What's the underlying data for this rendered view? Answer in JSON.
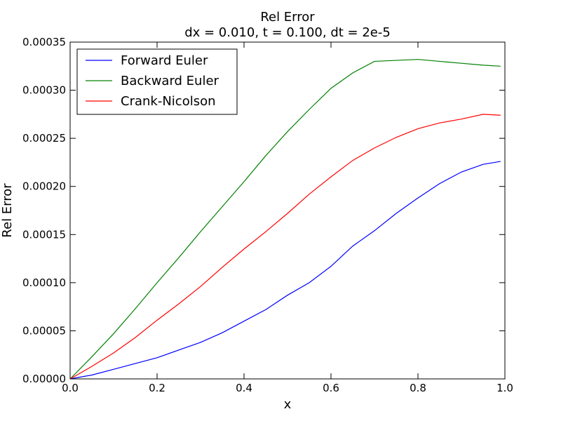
{
  "chart_data": {
    "type": "line",
    "title": "Rel Error",
    "subtitle": "dx = 0.010, t = 0.100, dt = 2e-5",
    "xlabel": "x",
    "ylabel": "Rel Error",
    "xlim": [
      0.0,
      1.0
    ],
    "ylim": [
      0.0,
      0.00035
    ],
    "grid": false,
    "legend_position": "top-left",
    "xticks": [
      0.0,
      0.2,
      0.4,
      0.6,
      0.8,
      1.0
    ],
    "xtick_labels": [
      "0.0",
      "0.2",
      "0.4",
      "0.6",
      "0.8",
      "1.0"
    ],
    "yticks": [
      0.0,
      5e-05,
      0.0001,
      0.00015,
      0.0002,
      0.00025,
      0.0003,
      0.00035
    ],
    "ytick_labels": [
      "0.00000",
      "0.00005",
      "0.00010",
      "0.00015",
      "0.00020",
      "0.00025",
      "0.00030",
      "0.00035"
    ],
    "series": [
      {
        "name": "Forward Euler",
        "color": "#0000ff",
        "x": [
          0.0,
          0.05,
          0.1,
          0.15,
          0.2,
          0.25,
          0.3,
          0.35,
          0.4,
          0.45,
          0.5,
          0.55,
          0.6,
          0.65,
          0.7,
          0.75,
          0.8,
          0.85,
          0.9,
          0.95,
          0.99
        ],
        "y": [
          0.0,
          4e-06,
          1e-05,
          1.6e-05,
          2.2e-05,
          3e-05,
          3.8e-05,
          4.8e-05,
          6e-05,
          7.2e-05,
          8.7e-05,
          0.0001,
          0.000117,
          0.000138,
          0.000154,
          0.000172,
          0.000188,
          0.000203,
          0.000215,
          0.000223,
          0.000226
        ]
      },
      {
        "name": "Backward Euler",
        "color": "#008000",
        "x": [
          0.0,
          0.05,
          0.1,
          0.15,
          0.2,
          0.25,
          0.3,
          0.35,
          0.4,
          0.45,
          0.5,
          0.55,
          0.6,
          0.65,
          0.7,
          0.75,
          0.8,
          0.85,
          0.9,
          0.95,
          0.99
        ],
        "y": [
          0.0,
          2.3e-05,
          4.7e-05,
          7.3e-05,
          0.0001,
          0.000126,
          0.000153,
          0.000179,
          0.000205,
          0.000232,
          0.000257,
          0.00028,
          0.000302,
          0.000318,
          0.00033,
          0.000331,
          0.000332,
          0.00033,
          0.000328,
          0.000326,
          0.000325
        ]
      },
      {
        "name": "Crank-Nicolson",
        "color": "#ff0000",
        "x": [
          0.0,
          0.05,
          0.1,
          0.15,
          0.2,
          0.25,
          0.3,
          0.35,
          0.4,
          0.45,
          0.5,
          0.55,
          0.6,
          0.65,
          0.7,
          0.75,
          0.8,
          0.85,
          0.9,
          0.95,
          0.99
        ],
        "y": [
          0.0,
          1.3e-05,
          2.7e-05,
          4.3e-05,
          6.1e-05,
          7.8e-05,
          9.6e-05,
          0.000116,
          0.000135,
          0.000153,
          0.000172,
          0.000192,
          0.00021,
          0.000227,
          0.00024,
          0.000251,
          0.00026,
          0.000266,
          0.00027,
          0.000275,
          0.000274
        ]
      }
    ]
  }
}
